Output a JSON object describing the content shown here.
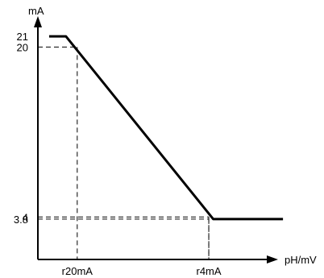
{
  "chart_data": {
    "type": "line",
    "xlabel": "pH/mV",
    "ylabel": "mA",
    "xlim": [
      0,
      10
    ],
    "ylim": [
      0,
      22
    ],
    "x_tick_labels": [
      {
        "label": "r20mA",
        "x": 1.75
      },
      {
        "label": "r4mA",
        "x": 7.6
      }
    ],
    "y_tick_labels": [
      {
        "label": "21",
        "y": 21
      },
      {
        "label": "20",
        "y": 20
      },
      {
        "label": "4",
        "y": 4
      },
      {
        "label": "3.8",
        "y": 3.8
      }
    ],
    "series": [
      {
        "points": [
          {
            "x": 0.5,
            "y": 21
          },
          {
            "x": 1.25,
            "y": 21
          },
          {
            "x": 7.8,
            "y": 3.8
          },
          {
            "x": 10.9,
            "y": 3.8
          }
        ]
      }
    ],
    "reference_lines": [
      {
        "y": 20,
        "x": 1.75
      },
      {
        "y": 4,
        "x": 7.6
      },
      {
        "y": 3.8,
        "x": 7.6
      }
    ],
    "grid": false,
    "legend": "none"
  }
}
